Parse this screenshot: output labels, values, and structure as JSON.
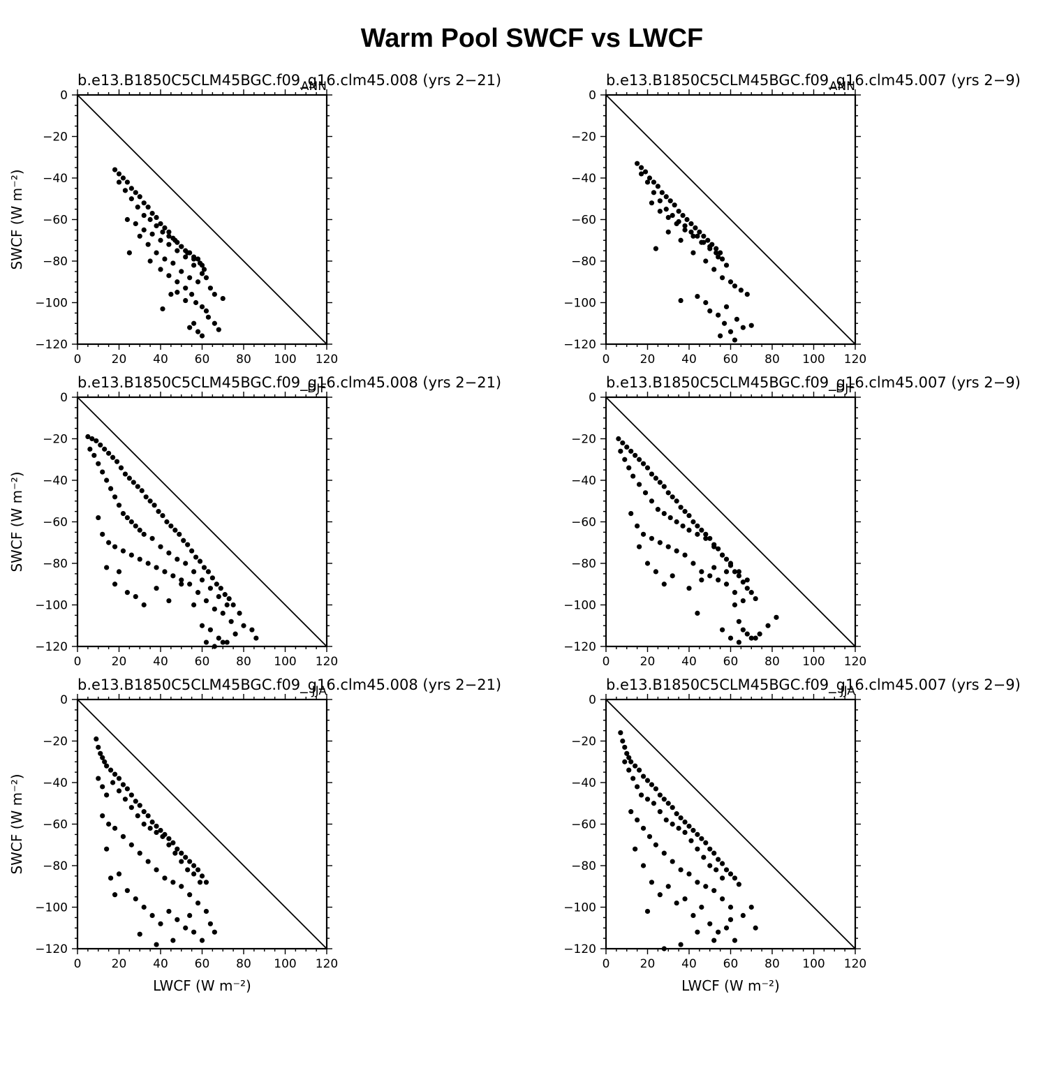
{
  "figure": {
    "title": "Warm Pool SWCF vs LWCF"
  },
  "chart_data": [
    {
      "type": "scatter",
      "title": "b.e13.B1850C5CLM45BGC.f09_g16.clm45.008 (yrs 2−21)",
      "season": "ANN",
      "xlabel": "",
      "ylabel": "SWCF (W m⁻²)",
      "xlim": [
        0,
        120
      ],
      "ylim": [
        -120,
        0
      ],
      "xticks": [
        "0",
        "20",
        "40",
        "60",
        "80",
        "100",
        "120"
      ],
      "yticks": [
        "0",
        "−20",
        "−40",
        "−60",
        "−80",
        "−100",
        "−120"
      ],
      "reference_line": [
        [
          0,
          0
        ],
        [
          120,
          -120
        ]
      ],
      "x": [
        18,
        20,
        22,
        24,
        26,
        28,
        30,
        32,
        34,
        36,
        38,
        40,
        42,
        44,
        46,
        48,
        50,
        52,
        54,
        56,
        58,
        60,
        20,
        23,
        26,
        29,
        32,
        35,
        38,
        41,
        44,
        47,
        50,
        53,
        56,
        59,
        61,
        24,
        28,
        32,
        36,
        40,
        44,
        48,
        52,
        56,
        60,
        30,
        34,
        38,
        42,
        46,
        50,
        54,
        58,
        62,
        64,
        66,
        25,
        35,
        40,
        44,
        48,
        52,
        55,
        57,
        60,
        62,
        56,
        58,
        54,
        60,
        63,
        66,
        68,
        70,
        48,
        52,
        41,
        45
      ],
      "y": [
        -36,
        -38,
        -40,
        -42,
        -45,
        -47,
        -49,
        -52,
        -54,
        -57,
        -59,
        -62,
        -64,
        -66,
        -69,
        -71,
        -73,
        -75,
        -76,
        -78,
        -79,
        -82,
        -42,
        -46,
        -50,
        -54,
        -58,
        -60,
        -63,
        -66,
        -68,
        -70,
        -73,
        -76,
        -79,
        -81,
        -84,
        -60,
        -62,
        -65,
        -67,
        -70,
        -72,
        -75,
        -78,
        -82,
        -86,
        -68,
        -72,
        -76,
        -79,
        -81,
        -85,
        -88,
        -90,
        -88,
        -93,
        -96,
        -76,
        -80,
        -84,
        -87,
        -90,
        -93,
        -96,
        -100,
        -102,
        -104,
        -110,
        -114,
        -112,
        -116,
        -107,
        -110,
        -113,
        -98,
        -95,
        -99,
        -103,
        -96
      ]
    },
    {
      "type": "scatter",
      "title": "b.e13.B1850C5CLM45BGC.f09_g16.clm45.007 (yrs 2−9)",
      "season": "ANN",
      "xlabel": "",
      "ylabel": "",
      "xlim": [
        0,
        120
      ],
      "ylim": [
        -120,
        0
      ],
      "xticks": [
        "0",
        "20",
        "40",
        "60",
        "80",
        "100",
        "120"
      ],
      "yticks": [
        "0",
        "−20",
        "−40",
        "−60",
        "−80",
        "−100",
        "−120"
      ],
      "reference_line": [
        [
          0,
          0
        ],
        [
          120,
          -120
        ]
      ],
      "x": [
        15,
        17,
        19,
        21,
        23,
        25,
        27,
        29,
        31,
        33,
        35,
        37,
        39,
        41,
        43,
        45,
        47,
        49,
        51,
        53,
        55,
        17,
        20,
        23,
        26,
        29,
        32,
        35,
        38,
        41,
        44,
        47,
        50,
        53,
        56,
        22,
        26,
        30,
        34,
        38,
        42,
        46,
        50,
        54,
        58,
        24,
        30,
        36,
        42,
        48,
        52,
        56,
        60,
        62,
        65,
        68,
        58,
        54,
        57,
        60,
        63,
        66,
        70,
        44,
        48,
        50,
        55,
        62,
        36
      ],
      "y": [
        -33,
        -35,
        -37,
        -40,
        -42,
        -44,
        -47,
        -49,
        -51,
        -53,
        -56,
        -58,
        -60,
        -62,
        -64,
        -66,
        -68,
        -70,
        -72,
        -74,
        -76,
        -38,
        -42,
        -47,
        -51,
        -55,
        -58,
        -61,
        -63,
        -66,
        -68,
        -71,
        -73,
        -76,
        -79,
        -52,
        -56,
        -59,
        -62,
        -65,
        -68,
        -71,
        -74,
        -78,
        -82,
        -74,
        -66,
        -70,
        -76,
        -80,
        -84,
        -88,
        -90,
        -92,
        -94,
        -96,
        -102,
        -106,
        -110,
        -114,
        -108,
        -112,
        -111,
        -97,
        -100,
        -104,
        -116,
        -118,
        -99
      ]
    },
    {
      "type": "scatter",
      "title": "b.e13.B1850C5CLM45BGC.f09_g16.clm45.008 (yrs 2−21)",
      "season": "DJF",
      "xlabel": "",
      "ylabel": "SWCF (W m⁻²)",
      "xlim": [
        0,
        120
      ],
      "ylim": [
        -120,
        0
      ],
      "xticks": [
        "0",
        "20",
        "40",
        "60",
        "80",
        "100",
        "120"
      ],
      "yticks": [
        "0",
        "−20",
        "−40",
        "−60",
        "−80",
        "−100",
        "−120"
      ],
      "reference_line": [
        [
          0,
          0
        ],
        [
          120,
          -120
        ]
      ],
      "x": [
        5,
        7,
        9,
        11,
        13,
        15,
        17,
        19,
        21,
        23,
        25,
        27,
        29,
        31,
        33,
        35,
        37,
        39,
        41,
        43,
        45,
        47,
        49,
        51,
        53,
        55,
        57,
        59,
        61,
        63,
        65,
        67,
        69,
        71,
        73,
        75,
        6,
        8,
        10,
        12,
        14,
        16,
        18,
        20,
        22,
        24,
        26,
        28,
        30,
        32,
        36,
        40,
        44,
        48,
        52,
        56,
        60,
        64,
        68,
        72,
        10,
        12,
        15,
        18,
        22,
        26,
        30,
        34,
        38,
        42,
        46,
        50,
        54,
        58,
        62,
        66,
        70,
        14,
        18,
        20,
        24,
        28,
        32,
        38,
        44,
        50,
        56,
        60,
        64,
        68,
        72,
        76,
        80,
        84,
        86,
        62,
        66,
        70,
        74,
        78
      ],
      "y": [
        -19,
        -20,
        -21,
        -23,
        -25,
        -27,
        -29,
        -31,
        -34,
        -37,
        -39,
        -41,
        -43,
        -45,
        -48,
        -50,
        -52,
        -55,
        -57,
        -60,
        -62,
        -64,
        -66,
        -69,
        -71,
        -74,
        -77,
        -79,
        -82,
        -84,
        -87,
        -90,
        -92,
        -95,
        -97,
        -100,
        -25,
        -28,
        -32,
        -36,
        -40,
        -44,
        -48,
        -52,
        -56,
        -58,
        -60,
        -62,
        -64,
        -66,
        -68,
        -72,
        -75,
        -78,
        -80,
        -84,
        -88,
        -92,
        -96,
        -100,
        -58,
        -66,
        -70,
        -72,
        -74,
        -76,
        -78,
        -80,
        -82,
        -84,
        -86,
        -88,
        -90,
        -94,
        -98,
        -102,
        -104,
        -82,
        -90,
        -84,
        -94,
        -96,
        -100,
        -92,
        -98,
        -90,
        -100,
        -110,
        -112,
        -116,
        -118,
        -114,
        -110,
        -112,
        -116,
        -118,
        -120,
        -118,
        -108,
        -104
      ]
    },
    {
      "type": "scatter",
      "title": "b.e13.B1850C5CLM45BGC.f09_g16.clm45.007 (yrs 2−9)",
      "season": "DJF",
      "xlabel": "",
      "ylabel": "",
      "xlim": [
        0,
        120
      ],
      "ylim": [
        -120,
        0
      ],
      "xticks": [
        "0",
        "20",
        "40",
        "60",
        "80",
        "100",
        "120"
      ],
      "yticks": [
        "0",
        "−20",
        "−40",
        "−60",
        "−80",
        "−100",
        "−120"
      ],
      "reference_line": [
        [
          0,
          0
        ],
        [
          120,
          -120
        ]
      ],
      "x": [
        6,
        8,
        10,
        12,
        14,
        16,
        18,
        20,
        22,
        24,
        26,
        28,
        30,
        32,
        34,
        36,
        38,
        40,
        42,
        44,
        46,
        48,
        50,
        52,
        54,
        56,
        58,
        60,
        62,
        64,
        66,
        68,
        70,
        72,
        7,
        9,
        11,
        13,
        16,
        19,
        22,
        25,
        28,
        31,
        34,
        37,
        40,
        44,
        48,
        52,
        56,
        60,
        64,
        68,
        12,
        15,
        18,
        22,
        26,
        30,
        34,
        38,
        42,
        46,
        50,
        54,
        58,
        62,
        66,
        16,
        20,
        24,
        28,
        32,
        40,
        46,
        52,
        58,
        62,
        64,
        66,
        70,
        74,
        78,
        82,
        44,
        56,
        60,
        64,
        68,
        72
      ],
      "y": [
        -20,
        -22,
        -24,
        -26,
        -28,
        -30,
        -32,
        -34,
        -37,
        -39,
        -41,
        -43,
        -46,
        -48,
        -50,
        -53,
        -55,
        -57,
        -60,
        -62,
        -64,
        -66,
        -68,
        -71,
        -73,
        -76,
        -78,
        -81,
        -84,
        -86,
        -89,
        -92,
        -94,
        -97,
        -26,
        -30,
        -34,
        -38,
        -42,
        -46,
        -50,
        -54,
        -56,
        -58,
        -60,
        -62,
        -64,
        -66,
        -68,
        -72,
        -76,
        -80,
        -84,
        -88,
        -56,
        -62,
        -66,
        -68,
        -70,
        -72,
        -74,
        -76,
        -80,
        -84,
        -86,
        -88,
        -90,
        -94,
        -98,
        -72,
        -80,
        -84,
        -90,
        -86,
        -92,
        -88,
        -82,
        -84,
        -100,
        -108,
        -112,
        -116,
        -114,
        -110,
        -106,
        -104,
        -112,
        -116,
        -118,
        -114,
        -116
      ]
    },
    {
      "type": "scatter",
      "title": "b.e13.B1850C5CLM45BGC.f09_g16.clm45.008 (yrs 2−21)",
      "season": "JJA",
      "xlabel": "LWCF (W m⁻²)",
      "ylabel": "SWCF (W m⁻²)",
      "xlim": [
        0,
        120
      ],
      "ylim": [
        -120,
        0
      ],
      "xticks": [
        "0",
        "20",
        "40",
        "60",
        "80",
        "100",
        "120"
      ],
      "yticks": [
        "0",
        "−20",
        "−40",
        "−60",
        "−80",
        "−100",
        "−120"
      ],
      "reference_line": [
        [
          0,
          0
        ],
        [
          120,
          -120
        ]
      ],
      "x": [
        9,
        10,
        11,
        12,
        13,
        14,
        16,
        18,
        20,
        22,
        24,
        26,
        28,
        30,
        32,
        34,
        36,
        38,
        40,
        42,
        44,
        46,
        48,
        50,
        52,
        54,
        56,
        58,
        60,
        62,
        10,
        12,
        14,
        17,
        20,
        23,
        26,
        29,
        32,
        35,
        38,
        41,
        44,
        47,
        50,
        53,
        56,
        59,
        12,
        15,
        18,
        22,
        26,
        30,
        34,
        38,
        42,
        46,
        50,
        54,
        58,
        14,
        16,
        18,
        20,
        24,
        28,
        32,
        36,
        40,
        44,
        48,
        52,
        56,
        60,
        62,
        64,
        66,
        30,
        38,
        46,
        54
      ],
      "y": [
        -19,
        -23,
        -26,
        -28,
        -30,
        -32,
        -34,
        -36,
        -38,
        -41,
        -43,
        -46,
        -49,
        -51,
        -54,
        -56,
        -59,
        -61,
        -63,
        -65,
        -67,
        -69,
        -72,
        -74,
        -76,
        -78,
        -80,
        -82,
        -85,
        -88,
        -38,
        -42,
        -46,
        -40,
        -44,
        -48,
        -52,
        -56,
        -60,
        -62,
        -64,
        -66,
        -70,
        -74,
        -78,
        -82,
        -84,
        -88,
        -56,
        -60,
        -62,
        -66,
        -70,
        -74,
        -78,
        -82,
        -86,
        -88,
        -90,
        -94,
        -98,
        -72,
        -86,
        -94,
        -84,
        -92,
        -96,
        -100,
        -104,
        -108,
        -102,
        -106,
        -110,
        -112,
        -116,
        -102,
        -108,
        -112,
        -113,
        -118,
        -116,
        -104
      ]
    },
    {
      "type": "scatter",
      "title": "b.e13.B1850C5CLM45BGC.f09_g16.clm45.007 (yrs 2−9)",
      "season": "JJA",
      "xlabel": "LWCF (W m⁻²)",
      "ylabel": "",
      "xlim": [
        0,
        120
      ],
      "ylim": [
        -120,
        0
      ],
      "xticks": [
        "0",
        "20",
        "40",
        "60",
        "80",
        "100",
        "120"
      ],
      "yticks": [
        "0",
        "−20",
        "−40",
        "−60",
        "−80",
        "−100",
        "−120"
      ],
      "reference_line": [
        [
          0,
          0
        ],
        [
          120,
          -120
        ]
      ],
      "x": [
        7,
        8,
        9,
        10,
        11,
        12,
        14,
        16,
        18,
        20,
        22,
        24,
        26,
        28,
        30,
        32,
        34,
        36,
        38,
        40,
        42,
        44,
        46,
        48,
        50,
        52,
        54,
        56,
        58,
        60,
        62,
        64,
        9,
        11,
        13,
        15,
        17,
        20,
        23,
        26,
        29,
        32,
        35,
        38,
        41,
        44,
        47,
        50,
        53,
        56,
        12,
        15,
        18,
        21,
        24,
        28,
        32,
        36,
        40,
        44,
        48,
        52,
        56,
        60,
        14,
        18,
        22,
        26,
        30,
        34,
        38,
        42,
        46,
        50,
        54,
        58,
        62,
        66,
        70,
        72,
        20,
        28,
        36,
        44,
        52,
        60
      ],
      "y": [
        -16,
        -20,
        -23,
        -26,
        -28,
        -30,
        -32,
        -34,
        -37,
        -39,
        -41,
        -43,
        -46,
        -48,
        -50,
        -52,
        -55,
        -57,
        -59,
        -61,
        -63,
        -65,
        -67,
        -69,
        -72,
        -74,
        -77,
        -79,
        -82,
        -84,
        -86,
        -89,
        -30,
        -34,
        -38,
        -42,
        -46,
        -48,
        -50,
        -54,
        -58,
        -60,
        -62,
        -64,
        -68,
        -72,
        -76,
        -80,
        -82,
        -86,
        -54,
        -58,
        -62,
        -66,
        -70,
        -74,
        -78,
        -82,
        -84,
        -88,
        -90,
        -92,
        -96,
        -100,
        -72,
        -80,
        -88,
        -94,
        -90,
        -98,
        -96,
        -104,
        -100,
        -108,
        -112,
        -110,
        -116,
        -104,
        -100,
        -110,
        -102,
        -120,
        -118,
        -112,
        -116,
        -106
      ]
    }
  ]
}
